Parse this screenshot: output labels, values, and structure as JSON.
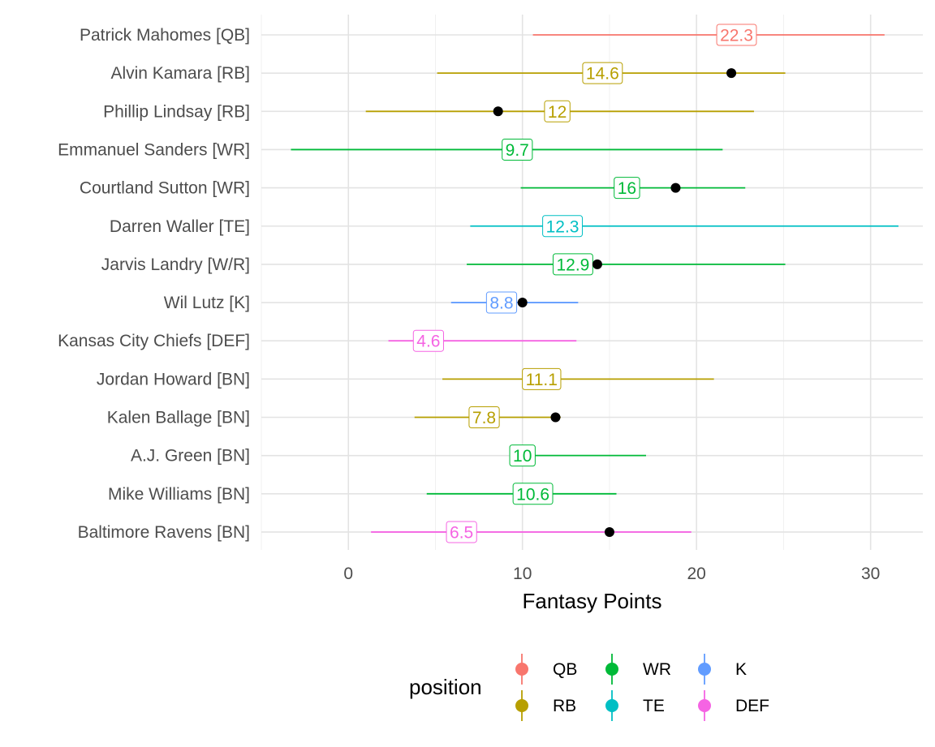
{
  "chart_data": {
    "type": "pointrange",
    "xlabel": "Fantasy Points",
    "ylabel": "",
    "xlim": [
      -5,
      33
    ],
    "xticks": [
      0,
      10,
      20,
      30
    ],
    "grid": true,
    "legend": {
      "title": "position",
      "placement": "bottom",
      "entries": [
        {
          "name": "QB",
          "color": "#F8766D"
        },
        {
          "name": "RB",
          "color": "#B79F00"
        },
        {
          "name": "WR",
          "color": "#00BA38"
        },
        {
          "name": "TE",
          "color": "#00BFC4"
        },
        {
          "name": "K",
          "color": "#619CFF"
        },
        {
          "name": "DEF",
          "color": "#F564E3"
        }
      ]
    },
    "players": [
      {
        "name": "Patrick Mahomes [QB]",
        "position": "QB",
        "low": 10.6,
        "high": 30.8,
        "projection": 22.3,
        "label": "22.3",
        "actual": null
      },
      {
        "name": "Alvin Kamara [RB]",
        "position": "RB",
        "low": 5.1,
        "high": 25.1,
        "projection": 14.6,
        "label": "14.6",
        "actual": 22.0
      },
      {
        "name": "Phillip Lindsay [RB]",
        "position": "RB",
        "low": 1.0,
        "high": 23.3,
        "projection": 12.0,
        "label": "12",
        "actual": 8.6
      },
      {
        "name": "Emmanuel Sanders [WR]",
        "position": "WR",
        "low": -3.3,
        "high": 21.5,
        "projection": 9.7,
        "label": "9.7",
        "actual": null
      },
      {
        "name": "Courtland Sutton [WR]",
        "position": "WR",
        "low": 9.9,
        "high": 22.8,
        "projection": 16.0,
        "label": "16",
        "actual": 18.8
      },
      {
        "name": "Darren Waller [TE]",
        "position": "TE",
        "low": 7.0,
        "high": 31.6,
        "projection": 12.3,
        "label": "12.3",
        "actual": null
      },
      {
        "name": "Jarvis Landry [W/R]",
        "position": "WR",
        "low": 6.8,
        "high": 25.1,
        "projection": 12.9,
        "label": "12.9",
        "actual": 14.3
      },
      {
        "name": "Wil Lutz [K]",
        "position": "K",
        "low": 5.9,
        "high": 13.2,
        "projection": 8.8,
        "label": "8.8",
        "actual": 10.0
      },
      {
        "name": "Kansas City Chiefs [DEF]",
        "position": "DEF",
        "low": 2.3,
        "high": 13.1,
        "projection": 4.6,
        "label": "4.6",
        "actual": null
      },
      {
        "name": "Jordan Howard [BN]",
        "position": "RB",
        "low": 5.4,
        "high": 21.0,
        "projection": 11.1,
        "label": "11.1",
        "actual": null
      },
      {
        "name": "Kalen Ballage [BN]",
        "position": "RB",
        "low": 3.8,
        "high": 12.2,
        "projection": 7.8,
        "label": "7.8",
        "actual": 11.9
      },
      {
        "name": "A.J. Green [BN]",
        "position": "WR",
        "low": 9.5,
        "high": 17.1,
        "projection": 10.0,
        "label": "10",
        "actual": null
      },
      {
        "name": "Mike Williams [BN]",
        "position": "WR",
        "low": 4.5,
        "high": 15.4,
        "projection": 10.6,
        "label": "10.6",
        "actual": null
      },
      {
        "name": "Baltimore Ravens [BN]",
        "position": "DEF",
        "low": 1.3,
        "high": 19.7,
        "projection": 6.5,
        "label": "6.5",
        "actual": 15.0
      }
    ]
  }
}
